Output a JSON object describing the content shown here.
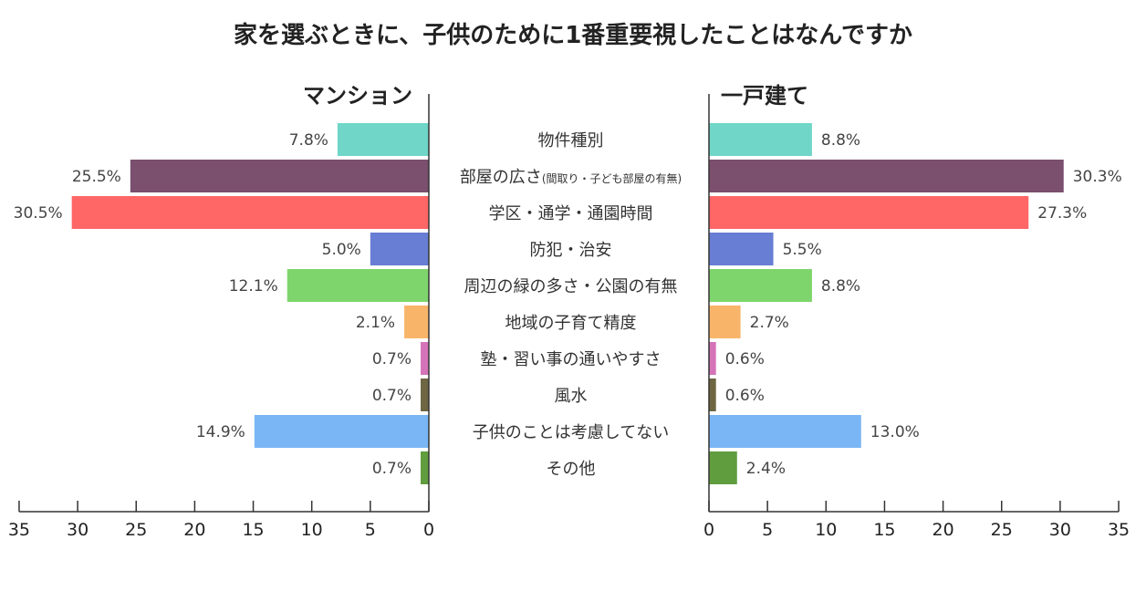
{
  "chart_data": {
    "type": "bar",
    "title": "家を選ぶときに、子供のために1番重要視したことはなんですか",
    "categories": [
      "物件種別",
      "部屋の広さ",
      "学区・通学・通園時間",
      "防犯・治安",
      "周辺の緑の多さ・公園の有無",
      "地域の子育て精度",
      "塾・習い事の通いやすさ",
      "風水",
      "子供のことは考慮してない",
      "その他"
    ],
    "category_notes": [
      "",
      "(間取り・子ども部屋の有無)",
      "",
      "",
      "",
      "",
      "",
      "",
      "",
      ""
    ],
    "series": [
      {
        "name": "マンション",
        "values": [
          7.8,
          25.5,
          30.5,
          5.0,
          12.1,
          2.1,
          0.7,
          0.7,
          14.9,
          0.7
        ],
        "labels": [
          "7.8%",
          "25.5%",
          "30.5%",
          "5.0%",
          "12.1%",
          "2.1%",
          "0.7%",
          "0.7%",
          "14.9%",
          "0.7%"
        ]
      },
      {
        "name": "一戸建て",
        "values": [
          8.8,
          30.3,
          27.3,
          5.5,
          8.8,
          2.7,
          0.6,
          0.6,
          13.0,
          2.4
        ],
        "labels": [
          "8.8%",
          "30.3%",
          "27.3%",
          "5.5%",
          "8.8%",
          "2.7%",
          "0.6%",
          "0.6%",
          "13.0%",
          "2.4%"
        ]
      }
    ],
    "colors": [
      "#6fd6c8",
      "#7b4f6e",
      "#ff6666",
      "#677ed4",
      "#7ed56c",
      "#f8b56a",
      "#d473b8",
      "#6e6543",
      "#7ab6f5",
      "#5f9d3f"
    ],
    "xlim": [
      0,
      35
    ],
    "xticks": [
      0,
      5,
      10,
      15,
      20,
      25,
      30,
      35
    ],
    "xtick_labels": [
      "0",
      "5",
      "10",
      "15",
      "20",
      "25",
      "30",
      "35"
    ],
    "grid": false
  }
}
